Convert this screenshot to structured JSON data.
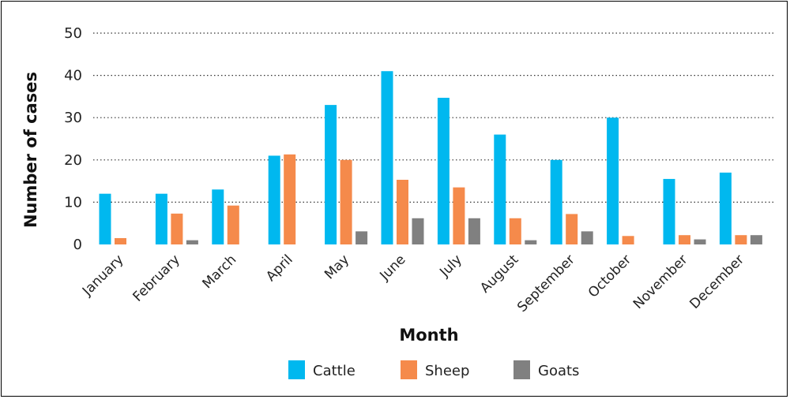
{
  "chart_data": {
    "type": "bar",
    "title": "",
    "xlabel": "Month",
    "ylabel": "Number of cases",
    "ylim": [
      0,
      50
    ],
    "yticks": [
      0,
      10,
      20,
      30,
      40,
      50
    ],
    "grid": "horizontal-dotted",
    "legend_position": "bottom",
    "categories": [
      "January",
      "February",
      "March",
      "April",
      "May",
      "June",
      "July",
      "August",
      "September",
      "October",
      "November",
      "December"
    ],
    "series": [
      {
        "name": "Cattle",
        "color": "#00b8ef",
        "values": [
          12,
          12,
          13,
          21,
          33,
          41,
          34.7,
          26,
          20,
          30,
          15.5,
          17
        ]
      },
      {
        "name": "Sheep",
        "color": "#f58a4b",
        "values": [
          1.5,
          7.3,
          9.2,
          21.3,
          20,
          15.3,
          13.5,
          6.2,
          7.2,
          2,
          2.2,
          2.2
        ]
      },
      {
        "name": "Goats",
        "color": "#808080",
        "values": [
          0,
          1,
          0,
          0,
          3.1,
          6.2,
          6.2,
          1,
          3.1,
          0,
          1.2,
          2.2
        ]
      }
    ]
  }
}
